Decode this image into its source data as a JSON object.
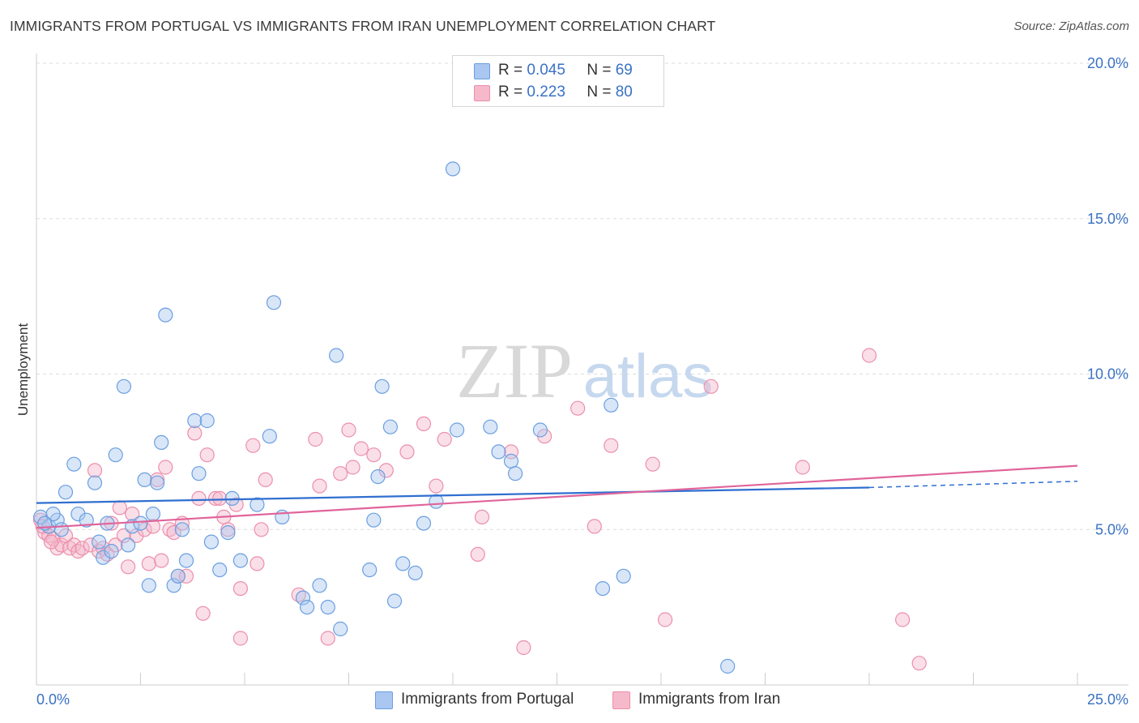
{
  "header": {
    "title": "IMMIGRANTS FROM PORTUGAL VS IMMIGRANTS FROM IRAN UNEMPLOYMENT CORRELATION CHART",
    "source": "Source: ZipAtlas.com"
  },
  "watermark": {
    "zip": "ZIP",
    "atlas": "atlas"
  },
  "legend": {
    "rows": [
      {
        "r_label": "R =",
        "r_value": "0.045",
        "n_label": "N =",
        "n_value": "69",
        "color": "#a9c7f0"
      },
      {
        "r_label": "R =",
        "r_value": "0.223",
        "n_label": "N =",
        "n_value": "80",
        "color": "#f5b9cb"
      }
    ]
  },
  "bottom_legend": {
    "portugal": "Immigrants from Portugal",
    "iran": "Immigrants from Iran"
  },
  "colors": {
    "portugal_fill": "#a9c7f0",
    "portugal_stroke": "#6b9fe0",
    "portugal_line": "#2f6fd0",
    "iran_fill": "#f5b9cb",
    "iran_stroke": "#ec8fab",
    "iran_line": "#e0649a",
    "axis_text": "#3a72c4",
    "grid": "#dddddd"
  },
  "chart_data": {
    "type": "scatter",
    "title": "IMMIGRANTS FROM PORTUGAL VS IMMIGRANTS FROM IRAN UNEMPLOYMENT CORRELATION CHART",
    "xlabel": "",
    "ylabel": "Unemployment",
    "xlim": [
      0,
      25
    ],
    "ylim": [
      0,
      20
    ],
    "x_tick_labels": [
      "0.0%",
      "25.0%"
    ],
    "y_ticks": [
      5,
      10,
      15,
      20
    ],
    "y_tick_labels": [
      "5.0%",
      "10.0%",
      "15.0%",
      "20.0%"
    ],
    "grid": true,
    "legend_position": "top-center",
    "series": [
      {
        "name": "Immigrants from Portugal",
        "r": 0.045,
        "n": 69,
        "trend": {
          "x": [
            0,
            20
          ],
          "y": [
            5.85,
            6.35
          ],
          "dashed_to": [
            25,
            6.55
          ]
        },
        "points": [
          [
            0.1,
            5.4
          ],
          [
            0.3,
            5.1
          ],
          [
            0.5,
            5.3
          ],
          [
            0.6,
            5.0
          ],
          [
            0.7,
            6.2
          ],
          [
            0.9,
            7.1
          ],
          [
            1.0,
            5.5
          ],
          [
            1.2,
            5.3
          ],
          [
            1.4,
            6.5
          ],
          [
            1.5,
            4.6
          ],
          [
            1.6,
            4.1
          ],
          [
            1.7,
            5.2
          ],
          [
            1.8,
            4.3
          ],
          [
            1.9,
            7.4
          ],
          [
            2.1,
            9.6
          ],
          [
            2.2,
            4.5
          ],
          [
            2.3,
            5.1
          ],
          [
            2.5,
            5.2
          ],
          [
            2.6,
            6.6
          ],
          [
            2.7,
            3.2
          ],
          [
            2.8,
            5.5
          ],
          [
            2.9,
            6.5
          ],
          [
            3.0,
            7.8
          ],
          [
            3.1,
            11.9
          ],
          [
            3.3,
            3.2
          ],
          [
            3.4,
            3.5
          ],
          [
            3.5,
            5.0
          ],
          [
            3.6,
            4.0
          ],
          [
            3.8,
            8.5
          ],
          [
            3.9,
            6.8
          ],
          [
            4.1,
            8.5
          ],
          [
            4.2,
            4.6
          ],
          [
            4.4,
            3.7
          ],
          [
            4.6,
            4.9
          ],
          [
            4.7,
            6.0
          ],
          [
            4.9,
            4.0
          ],
          [
            5.3,
            5.8
          ],
          [
            5.6,
            8.0
          ],
          [
            5.7,
            12.3
          ],
          [
            5.9,
            5.4
          ],
          [
            6.4,
            2.8
          ],
          [
            6.5,
            2.5
          ],
          [
            6.8,
            3.2
          ],
          [
            7.0,
            2.5
          ],
          [
            7.2,
            10.6
          ],
          [
            7.3,
            1.8
          ],
          [
            8.1,
            5.3
          ],
          [
            8.0,
            3.7
          ],
          [
            8.2,
            6.7
          ],
          [
            8.3,
            9.6
          ],
          [
            8.5,
            8.3
          ],
          [
            8.6,
            2.7
          ],
          [
            8.8,
            3.9
          ],
          [
            9.1,
            3.6
          ],
          [
            9.3,
            5.2
          ],
          [
            9.6,
            5.9
          ],
          [
            10.0,
            16.6
          ],
          [
            10.1,
            8.2
          ],
          [
            10.9,
            8.3
          ],
          [
            11.1,
            7.5
          ],
          [
            11.4,
            7.2
          ],
          [
            11.5,
            6.8
          ],
          [
            12.1,
            8.2
          ],
          [
            13.6,
            3.1
          ],
          [
            13.8,
            9.0
          ],
          [
            14.1,
            3.5
          ],
          [
            16.6,
            0.6
          ],
          [
            0.4,
            5.5
          ],
          [
            0.2,
            5.2
          ]
        ]
      },
      {
        "name": "Immigrants from Iran",
        "r": 0.223,
        "n": 80,
        "trend": {
          "x": [
            0,
            25
          ],
          "y": [
            5.05,
            7.05
          ]
        },
        "points": [
          [
            0.1,
            5.3
          ],
          [
            0.2,
            4.9
          ],
          [
            0.3,
            4.8
          ],
          [
            0.4,
            4.7
          ],
          [
            0.5,
            4.4
          ],
          [
            0.6,
            4.5
          ],
          [
            0.7,
            4.8
          ],
          [
            0.8,
            4.4
          ],
          [
            0.9,
            4.5
          ],
          [
            1.0,
            4.3
          ],
          [
            1.1,
            4.4
          ],
          [
            1.3,
            4.5
          ],
          [
            1.4,
            6.9
          ],
          [
            1.5,
            4.3
          ],
          [
            1.6,
            4.4
          ],
          [
            1.7,
            4.2
          ],
          [
            1.8,
            5.2
          ],
          [
            1.9,
            4.5
          ],
          [
            2.0,
            5.7
          ],
          [
            2.1,
            4.8
          ],
          [
            2.2,
            3.8
          ],
          [
            2.3,
            5.5
          ],
          [
            2.4,
            4.8
          ],
          [
            2.6,
            5.0
          ],
          [
            2.7,
            3.9
          ],
          [
            2.8,
            5.1
          ],
          [
            2.9,
            6.6
          ],
          [
            3.0,
            4.0
          ],
          [
            3.1,
            7.0
          ],
          [
            3.2,
            5.0
          ],
          [
            3.3,
            4.9
          ],
          [
            3.4,
            3.5
          ],
          [
            3.5,
            5.2
          ],
          [
            3.6,
            3.5
          ],
          [
            3.8,
            8.1
          ],
          [
            3.9,
            6.0
          ],
          [
            4.0,
            2.3
          ],
          [
            4.1,
            7.4
          ],
          [
            4.3,
            6.0
          ],
          [
            4.4,
            6.0
          ],
          [
            4.5,
            5.4
          ],
          [
            4.6,
            5.0
          ],
          [
            4.8,
            5.8
          ],
          [
            4.9,
            3.1
          ],
          [
            4.9,
            1.5
          ],
          [
            5.2,
            7.7
          ],
          [
            5.3,
            3.9
          ],
          [
            5.4,
            5.0
          ],
          [
            5.5,
            6.6
          ],
          [
            6.3,
            2.9
          ],
          [
            6.7,
            7.9
          ],
          [
            6.8,
            6.4
          ],
          [
            7.0,
            1.5
          ],
          [
            7.3,
            6.8
          ],
          [
            7.5,
            8.2
          ],
          [
            7.6,
            7.0
          ],
          [
            7.8,
            7.6
          ],
          [
            8.1,
            7.4
          ],
          [
            8.4,
            6.9
          ],
          [
            8.9,
            7.5
          ],
          [
            9.3,
            8.4
          ],
          [
            9.6,
            6.4
          ],
          [
            9.8,
            7.9
          ],
          [
            10.7,
            5.4
          ],
          [
            10.6,
            4.2
          ],
          [
            11.4,
            7.5
          ],
          [
            11.7,
            1.2
          ],
          [
            12.2,
            8.0
          ],
          [
            13.0,
            8.9
          ],
          [
            13.4,
            5.1
          ],
          [
            13.8,
            7.7
          ],
          [
            14.8,
            7.1
          ],
          [
            15.1,
            2.1
          ],
          [
            16.2,
            9.6
          ],
          [
            18.4,
            7.0
          ],
          [
            20.0,
            10.6
          ],
          [
            20.8,
            2.1
          ],
          [
            21.2,
            0.7
          ],
          [
            0.15,
            5.1
          ],
          [
            0.35,
            4.6
          ]
        ]
      }
    ]
  }
}
